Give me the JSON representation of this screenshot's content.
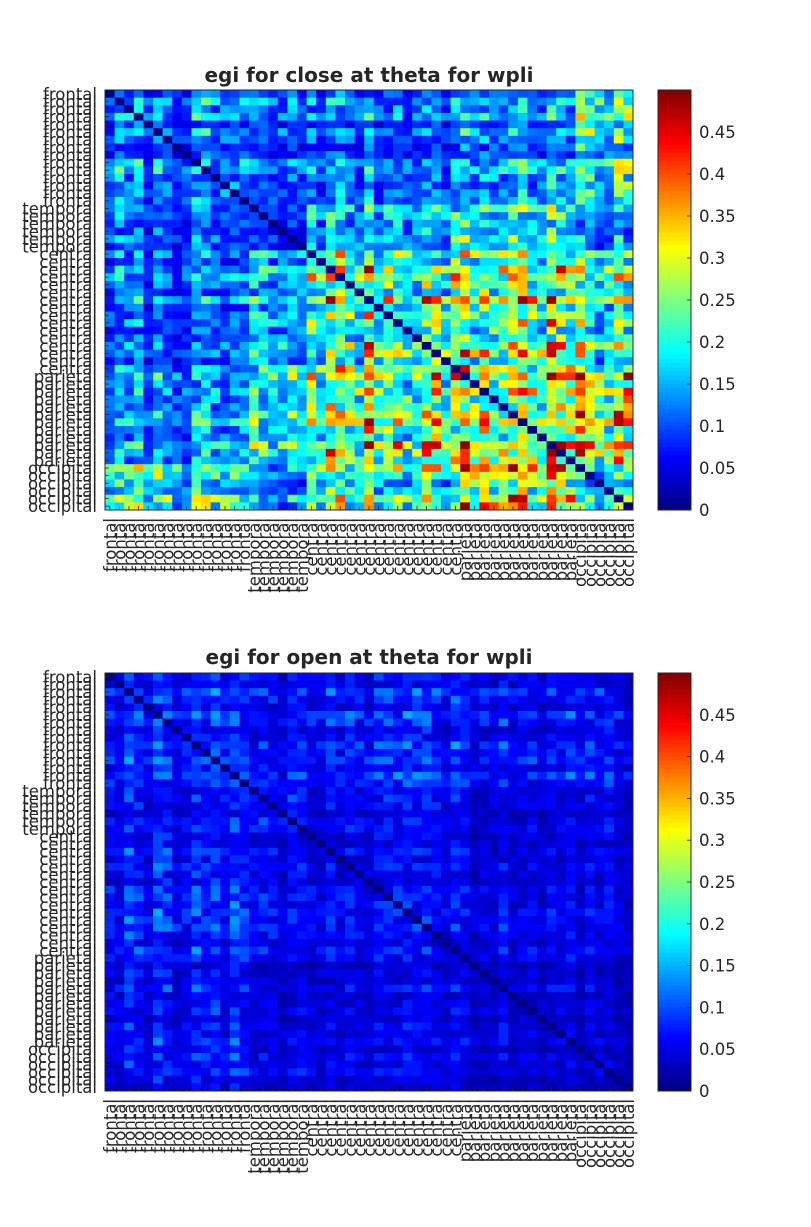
{
  "chart_data": [
    {
      "type": "heatmap",
      "title": "egi for close at theta for wpli",
      "xlabel": "",
      "ylabel": "",
      "colormap": "jet",
      "clim": [
        0,
        0.5
      ],
      "colorbar_ticks": [
        "0",
        "0.05",
        "0.1",
        "0.15",
        "0.2",
        "0.25",
        "0.3",
        "0.35",
        "0.4",
        "0.45"
      ],
      "region_counts": [
        [
          "frontal",
          15
        ],
        [
          "temporal",
          6
        ],
        [
          "central",
          16
        ],
        [
          "parietal",
          12
        ],
        [
          "occipital",
          6
        ]
      ],
      "row_labels": [
        "frontal",
        "frontal",
        "frontal",
        "frontal",
        "frontal",
        "frontal",
        "frontal",
        "frontal",
        "frontal",
        "frontal",
        "frontal",
        "frontal",
        "frontal",
        "frontal",
        "frontal",
        "temporal",
        "temporal",
        "temporal",
        "temporal",
        "temporal",
        "temporal",
        "central",
        "central",
        "central",
        "central",
        "central",
        "central",
        "central",
        "central",
        "central",
        "central",
        "central",
        "central",
        "central",
        "central",
        "central",
        "central",
        "parietal",
        "parietal",
        "parietal",
        "parietal",
        "parietal",
        "parietal",
        "parietal",
        "parietal",
        "parietal",
        "parietal",
        "parietal",
        "parietal",
        "occipital",
        "occipital",
        "occipital",
        "occipital",
        "occipital",
        "occipital"
      ],
      "col_labels": [
        "frontal",
        "frontal",
        "frontal",
        "frontal",
        "frontal",
        "frontal",
        "frontal",
        "frontal",
        "frontal",
        "frontal",
        "frontal",
        "frontal",
        "frontal",
        "frontal",
        "frontal",
        "temporal",
        "temporal",
        "temporal",
        "temporal",
        "temporal",
        "temporal",
        "central",
        "central",
        "central",
        "central",
        "central",
        "central",
        "central",
        "central",
        "central",
        "central",
        "central",
        "central",
        "central",
        "central",
        "central",
        "central",
        "parietal",
        "parietal",
        "parietal",
        "parietal",
        "parietal",
        "parietal",
        "parietal",
        "parietal",
        "parietal",
        "parietal",
        "parietal",
        "parietal",
        "occipital",
        "occipital",
        "occipital",
        "occipital",
        "occipital",
        "occipital"
      ],
      "block_means": {
        "regions": [
          "frontal",
          "temporal",
          "central",
          "parietal",
          "occipital"
        ],
        "values": [
          [
            0.12,
            0.1,
            0.12,
            0.14,
            0.2
          ],
          [
            0.1,
            0.08,
            0.16,
            0.18,
            0.12
          ],
          [
            0.12,
            0.16,
            0.26,
            0.28,
            0.22
          ],
          [
            0.14,
            0.18,
            0.28,
            0.3,
            0.32
          ],
          [
            0.2,
            0.12,
            0.22,
            0.32,
            0.18
          ]
        ]
      },
      "diagonal": 0,
      "seed": 7
    },
    {
      "type": "heatmap",
      "title": "egi for open at theta for wpli",
      "xlabel": "",
      "ylabel": "",
      "colormap": "jet",
      "clim": [
        0,
        0.5
      ],
      "colorbar_ticks": [
        "0",
        "0.05",
        "0.1",
        "0.15",
        "0.2",
        "0.25",
        "0.3",
        "0.35",
        "0.4",
        "0.45"
      ],
      "region_counts": [
        [
          "frontal",
          15
        ],
        [
          "temporal",
          6
        ],
        [
          "central",
          16
        ],
        [
          "parietal",
          12
        ],
        [
          "occipital",
          6
        ]
      ],
      "row_labels": [
        "frontal",
        "frontal",
        "frontal",
        "frontal",
        "frontal",
        "frontal",
        "frontal",
        "frontal",
        "frontal",
        "frontal",
        "frontal",
        "frontal",
        "frontal",
        "frontal",
        "frontal",
        "temporal",
        "temporal",
        "temporal",
        "temporal",
        "temporal",
        "temporal",
        "central",
        "central",
        "central",
        "central",
        "central",
        "central",
        "central",
        "central",
        "central",
        "central",
        "central",
        "central",
        "central",
        "central",
        "central",
        "central",
        "parietal",
        "parietal",
        "parietal",
        "parietal",
        "parietal",
        "parietal",
        "parietal",
        "parietal",
        "parietal",
        "parietal",
        "parietal",
        "parietal",
        "occipital",
        "occipital",
        "occipital",
        "occipital",
        "occipital",
        "occipital"
      ],
      "col_labels": [
        "frontal",
        "frontal",
        "frontal",
        "frontal",
        "frontal",
        "frontal",
        "frontal",
        "frontal",
        "frontal",
        "frontal",
        "frontal",
        "frontal",
        "frontal",
        "frontal",
        "frontal",
        "temporal",
        "temporal",
        "temporal",
        "temporal",
        "temporal",
        "temporal",
        "central",
        "central",
        "central",
        "central",
        "central",
        "central",
        "central",
        "central",
        "central",
        "central",
        "central",
        "central",
        "central",
        "central",
        "central",
        "central",
        "parietal",
        "parietal",
        "parietal",
        "parietal",
        "parietal",
        "parietal",
        "parietal",
        "parietal",
        "parietal",
        "parietal",
        "parietal",
        "parietal",
        "occipital",
        "occipital",
        "occipital",
        "occipital",
        "occipital",
        "occipital"
      ],
      "block_means": {
        "regions": [
          "frontal",
          "temporal",
          "central",
          "parietal",
          "occipital"
        ],
        "values": [
          [
            0.09,
            0.07,
            0.08,
            0.07,
            0.07
          ],
          [
            0.07,
            0.08,
            0.06,
            0.05,
            0.05
          ],
          [
            0.08,
            0.06,
            0.06,
            0.05,
            0.05
          ],
          [
            0.07,
            0.05,
            0.05,
            0.045,
            0.04
          ],
          [
            0.07,
            0.05,
            0.05,
            0.04,
            0.04
          ]
        ]
      },
      "diagonal": 0,
      "seed": 19
    }
  ]
}
